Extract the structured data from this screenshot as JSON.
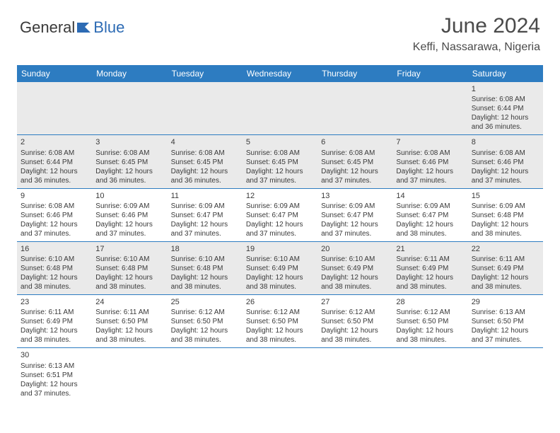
{
  "logo": {
    "general": "General",
    "blue": "Blue"
  },
  "header": {
    "title": "June 2024",
    "location": "Keffi, Nassarawa, Nigeria"
  },
  "colors": {
    "header_bg": "#2d7cc1",
    "header_fg": "#ffffff",
    "grey_bg": "#eaeaea",
    "text": "#3a3a3a",
    "border": "#2d7cc1",
    "logo_blue": "#2d6bb4"
  },
  "daynames": [
    "Sunday",
    "Monday",
    "Tuesday",
    "Wednesday",
    "Thursday",
    "Friday",
    "Saturday"
  ],
  "weeks": [
    [
      {
        "empty": true
      },
      {
        "empty": true
      },
      {
        "empty": true
      },
      {
        "empty": true
      },
      {
        "empty": true
      },
      {
        "empty": true
      },
      {
        "day": "1",
        "sunrise": "Sunrise: 6:08 AM",
        "sunset": "Sunset: 6:44 PM",
        "dl1": "Daylight: 12 hours",
        "dl2": "and 36 minutes.",
        "grey": true
      }
    ],
    [
      {
        "day": "2",
        "sunrise": "Sunrise: 6:08 AM",
        "sunset": "Sunset: 6:44 PM",
        "dl1": "Daylight: 12 hours",
        "dl2": "and 36 minutes.",
        "grey": true
      },
      {
        "day": "3",
        "sunrise": "Sunrise: 6:08 AM",
        "sunset": "Sunset: 6:45 PM",
        "dl1": "Daylight: 12 hours",
        "dl2": "and 36 minutes.",
        "grey": true
      },
      {
        "day": "4",
        "sunrise": "Sunrise: 6:08 AM",
        "sunset": "Sunset: 6:45 PM",
        "dl1": "Daylight: 12 hours",
        "dl2": "and 36 minutes.",
        "grey": true
      },
      {
        "day": "5",
        "sunrise": "Sunrise: 6:08 AM",
        "sunset": "Sunset: 6:45 PM",
        "dl1": "Daylight: 12 hours",
        "dl2": "and 37 minutes.",
        "grey": true
      },
      {
        "day": "6",
        "sunrise": "Sunrise: 6:08 AM",
        "sunset": "Sunset: 6:45 PM",
        "dl1": "Daylight: 12 hours",
        "dl2": "and 37 minutes.",
        "grey": true
      },
      {
        "day": "7",
        "sunrise": "Sunrise: 6:08 AM",
        "sunset": "Sunset: 6:46 PM",
        "dl1": "Daylight: 12 hours",
        "dl2": "and 37 minutes.",
        "grey": true
      },
      {
        "day": "8",
        "sunrise": "Sunrise: 6:08 AM",
        "sunset": "Sunset: 6:46 PM",
        "dl1": "Daylight: 12 hours",
        "dl2": "and 37 minutes.",
        "grey": true
      }
    ],
    [
      {
        "day": "9",
        "sunrise": "Sunrise: 6:08 AM",
        "sunset": "Sunset: 6:46 PM",
        "dl1": "Daylight: 12 hours",
        "dl2": "and 37 minutes."
      },
      {
        "day": "10",
        "sunrise": "Sunrise: 6:09 AM",
        "sunset": "Sunset: 6:46 PM",
        "dl1": "Daylight: 12 hours",
        "dl2": "and 37 minutes."
      },
      {
        "day": "11",
        "sunrise": "Sunrise: 6:09 AM",
        "sunset": "Sunset: 6:47 PM",
        "dl1": "Daylight: 12 hours",
        "dl2": "and 37 minutes."
      },
      {
        "day": "12",
        "sunrise": "Sunrise: 6:09 AM",
        "sunset": "Sunset: 6:47 PM",
        "dl1": "Daylight: 12 hours",
        "dl2": "and 37 minutes."
      },
      {
        "day": "13",
        "sunrise": "Sunrise: 6:09 AM",
        "sunset": "Sunset: 6:47 PM",
        "dl1": "Daylight: 12 hours",
        "dl2": "and 37 minutes."
      },
      {
        "day": "14",
        "sunrise": "Sunrise: 6:09 AM",
        "sunset": "Sunset: 6:47 PM",
        "dl1": "Daylight: 12 hours",
        "dl2": "and 38 minutes."
      },
      {
        "day": "15",
        "sunrise": "Sunrise: 6:09 AM",
        "sunset": "Sunset: 6:48 PM",
        "dl1": "Daylight: 12 hours",
        "dl2": "and 38 minutes."
      }
    ],
    [
      {
        "day": "16",
        "sunrise": "Sunrise: 6:10 AM",
        "sunset": "Sunset: 6:48 PM",
        "dl1": "Daylight: 12 hours",
        "dl2": "and 38 minutes.",
        "grey": true
      },
      {
        "day": "17",
        "sunrise": "Sunrise: 6:10 AM",
        "sunset": "Sunset: 6:48 PM",
        "dl1": "Daylight: 12 hours",
        "dl2": "and 38 minutes.",
        "grey": true
      },
      {
        "day": "18",
        "sunrise": "Sunrise: 6:10 AM",
        "sunset": "Sunset: 6:48 PM",
        "dl1": "Daylight: 12 hours",
        "dl2": "and 38 minutes.",
        "grey": true
      },
      {
        "day": "19",
        "sunrise": "Sunrise: 6:10 AM",
        "sunset": "Sunset: 6:49 PM",
        "dl1": "Daylight: 12 hours",
        "dl2": "and 38 minutes.",
        "grey": true
      },
      {
        "day": "20",
        "sunrise": "Sunrise: 6:10 AM",
        "sunset": "Sunset: 6:49 PM",
        "dl1": "Daylight: 12 hours",
        "dl2": "and 38 minutes.",
        "grey": true
      },
      {
        "day": "21",
        "sunrise": "Sunrise: 6:11 AM",
        "sunset": "Sunset: 6:49 PM",
        "dl1": "Daylight: 12 hours",
        "dl2": "and 38 minutes.",
        "grey": true
      },
      {
        "day": "22",
        "sunrise": "Sunrise: 6:11 AM",
        "sunset": "Sunset: 6:49 PM",
        "dl1": "Daylight: 12 hours",
        "dl2": "and 38 minutes.",
        "grey": true
      }
    ],
    [
      {
        "day": "23",
        "sunrise": "Sunrise: 6:11 AM",
        "sunset": "Sunset: 6:49 PM",
        "dl1": "Daylight: 12 hours",
        "dl2": "and 38 minutes."
      },
      {
        "day": "24",
        "sunrise": "Sunrise: 6:11 AM",
        "sunset": "Sunset: 6:50 PM",
        "dl1": "Daylight: 12 hours",
        "dl2": "and 38 minutes."
      },
      {
        "day": "25",
        "sunrise": "Sunrise: 6:12 AM",
        "sunset": "Sunset: 6:50 PM",
        "dl1": "Daylight: 12 hours",
        "dl2": "and 38 minutes."
      },
      {
        "day": "26",
        "sunrise": "Sunrise: 6:12 AM",
        "sunset": "Sunset: 6:50 PM",
        "dl1": "Daylight: 12 hours",
        "dl2": "and 38 minutes."
      },
      {
        "day": "27",
        "sunrise": "Sunrise: 6:12 AM",
        "sunset": "Sunset: 6:50 PM",
        "dl1": "Daylight: 12 hours",
        "dl2": "and 38 minutes."
      },
      {
        "day": "28",
        "sunrise": "Sunrise: 6:12 AM",
        "sunset": "Sunset: 6:50 PM",
        "dl1": "Daylight: 12 hours",
        "dl2": "and 38 minutes."
      },
      {
        "day": "29",
        "sunrise": "Sunrise: 6:13 AM",
        "sunset": "Sunset: 6:50 PM",
        "dl1": "Daylight: 12 hours",
        "dl2": "and 37 minutes."
      }
    ],
    [
      {
        "day": "30",
        "sunrise": "Sunrise: 6:13 AM",
        "sunset": "Sunset: 6:51 PM",
        "dl1": "Daylight: 12 hours",
        "dl2": "and 37 minutes.",
        "noborder": true
      },
      {
        "empty": true,
        "noborder": true,
        "white": true
      },
      {
        "empty": true,
        "noborder": true,
        "white": true
      },
      {
        "empty": true,
        "noborder": true,
        "white": true
      },
      {
        "empty": true,
        "noborder": true,
        "white": true
      },
      {
        "empty": true,
        "noborder": true,
        "white": true
      },
      {
        "empty": true,
        "noborder": true,
        "white": true
      }
    ]
  ]
}
